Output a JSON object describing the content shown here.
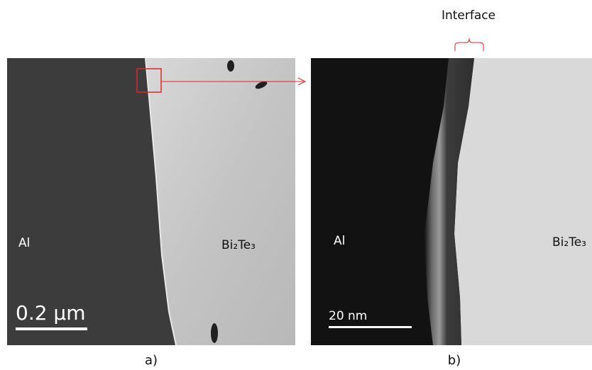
{
  "annotation": "Interface",
  "panels": [
    {
      "caption": "a)",
      "left_label": "Al",
      "right_label": "Bi₂Te₃",
      "scale_bar": "0.2 µm"
    },
    {
      "caption": "b)",
      "left_label": "Al",
      "right_label": "Bi₂Te₃",
      "scale_bar": "20 nm"
    }
  ]
}
